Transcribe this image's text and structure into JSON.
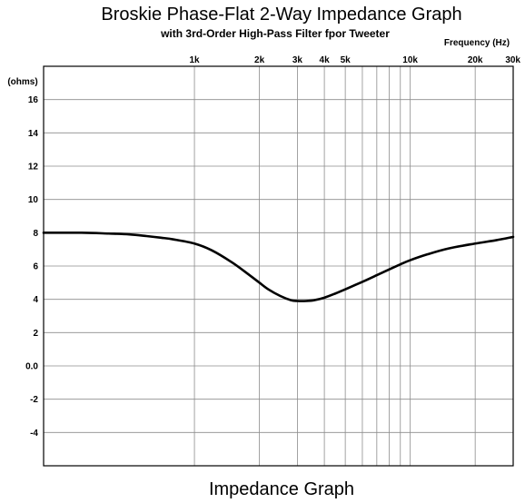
{
  "chart_data": {
    "type": "line",
    "title": "Broskie Phase-Flat 2-Way Impedance Graph",
    "subtitle": "with 3rd-Order High-Pass Filter fpor Tweeter",
    "caption": "Impedance Graph",
    "xlabel": "Frequency  (Hz)",
    "ylabel": "(ohms)",
    "x_scale": "log",
    "xlim": [
      200,
      30000
    ],
    "ylim": [
      -6,
      18
    ],
    "x_ticks": [
      {
        "value": 1000,
        "label": "1k"
      },
      {
        "value": 2000,
        "label": "2k"
      },
      {
        "value": 3000,
        "label": "3k"
      },
      {
        "value": 4000,
        "label": "4k"
      },
      {
        "value": 5000,
        "label": "5k"
      },
      {
        "value": 10000,
        "label": "10k"
      },
      {
        "value": 20000,
        "label": "20k"
      },
      {
        "value": 30000,
        "label": "30k"
      }
    ],
    "x_gridlines": [
      1000,
      2000,
      3000,
      4000,
      5000,
      6000,
      7000,
      8000,
      9000,
      10000,
      20000,
      30000
    ],
    "y_ticks": [
      {
        "value": 16,
        "label": "16"
      },
      {
        "value": 14,
        "label": "14"
      },
      {
        "value": 12,
        "label": "12"
      },
      {
        "value": 10,
        "label": "10"
      },
      {
        "value": 8,
        "label": "8"
      },
      {
        "value": 6,
        "label": "6"
      },
      {
        "value": 4,
        "label": "4"
      },
      {
        "value": 2,
        "label": "2"
      },
      {
        "value": 0,
        "label": "0.0"
      },
      {
        "value": -2,
        "label": "-2"
      },
      {
        "value": -4,
        "label": "-4"
      }
    ],
    "grid": true,
    "series": [
      {
        "color": "#000000",
        "x": [
          200,
          300,
          400,
          500,
          600,
          700,
          800,
          1000,
          1200,
          1500,
          1800,
          2000,
          2200,
          2500,
          2800,
          3000,
          3300,
          3600,
          4000,
          4500,
          5000,
          6000,
          7000,
          8000,
          9000,
          10000,
          12000,
          15000,
          20000,
          25000,
          30000
        ],
        "y": [
          8.0,
          8.0,
          7.95,
          7.9,
          7.8,
          7.7,
          7.6,
          7.35,
          6.95,
          6.2,
          5.45,
          5.0,
          4.6,
          4.2,
          3.95,
          3.9,
          3.9,
          3.95,
          4.1,
          4.35,
          4.6,
          5.05,
          5.45,
          5.8,
          6.1,
          6.35,
          6.7,
          7.05,
          7.35,
          7.55,
          7.75
        ]
      }
    ]
  }
}
